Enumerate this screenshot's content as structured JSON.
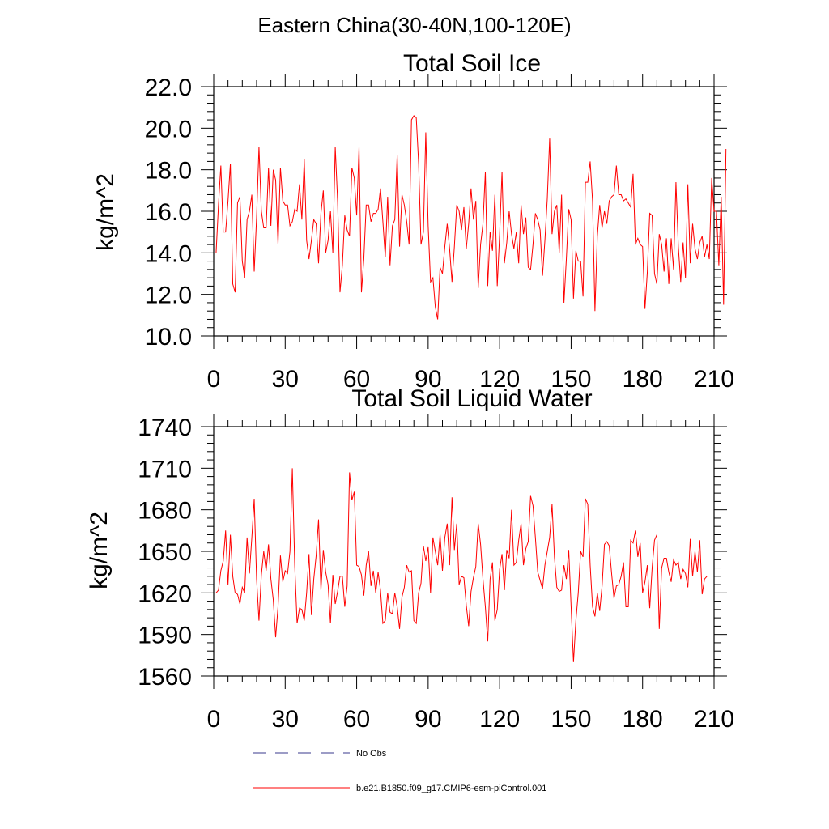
{
  "main_title": "Eastern China(30-40N,100-120E)",
  "legend": {
    "items": [
      {
        "label": "No Obs",
        "color": "#3a3a8c",
        "style": "dashed"
      },
      {
        "label": "b.e21.B1850.f09_g17.CMIP6-esm-piControl.001",
        "color": "#ff0000",
        "style": "solid"
      }
    ]
  },
  "chart_data": [
    {
      "type": "line",
      "title": "Total Soil Ice",
      "xlabel": "",
      "ylabel": "kg/m^2",
      "xlim": [
        0,
        210
      ],
      "ylim": [
        10,
        22
      ],
      "xticks": [
        0,
        30,
        60,
        90,
        120,
        150,
        180,
        210
      ],
      "yticks": [
        10,
        12,
        14,
        16,
        18,
        20,
        22
      ],
      "ytick_labels": [
        "10.0",
        "12.0",
        "14.0",
        "16.0",
        "18.0",
        "20.0",
        "22.0"
      ],
      "series": [
        {
          "name": "b.e21.B1850.f09_g17.CMIP6-esm-piControl.001",
          "color": "#ff0000",
          "values": [
            14.0,
            16.3,
            18.2,
            15.0,
            15.0,
            16.5,
            18.3,
            12.5,
            12.1,
            16.4,
            16.7,
            13.6,
            12.8,
            15.6,
            16.0,
            16.8,
            13.1,
            15.7,
            19.1,
            16.0,
            15.2,
            15.2,
            18.1,
            15.3,
            18.0,
            17.5,
            14.4,
            18.1,
            16.5,
            16.3,
            16.3,
            15.3,
            15.5,
            16.1,
            16.0,
            17.3,
            15.6,
            18.5,
            14.6,
            13.7,
            14.6,
            15.6,
            15.4,
            13.5,
            15.9,
            17.0,
            14.0,
            14.6,
            16.0,
            14.0,
            19.1,
            16.5,
            12.1,
            13.4,
            15.8,
            15.1,
            14.8,
            18.1,
            17.6,
            15.8,
            19.1,
            12.1,
            13.7,
            16.3,
            16.3,
            15.5,
            15.9,
            15.9,
            16.1,
            17.1,
            15.5,
            13.8,
            16.7,
            13.4,
            15.3,
            15.6,
            18.7,
            14.3,
            16.8,
            16.3,
            15.5,
            14.4,
            20.4,
            20.6,
            20.5,
            18.3,
            14.4,
            15.0,
            19.8,
            15.3,
            12.6,
            12.8,
            11.4,
            10.8,
            13.3,
            13.0,
            14.3,
            15.4,
            14.2,
            12.6,
            14.3,
            16.3,
            16.0,
            15.1,
            16.2,
            14.2,
            15.4,
            17.1,
            15.6,
            16.5,
            12.3,
            14.4,
            15.4,
            17.9,
            12.4,
            15.0,
            14.1,
            16.8,
            12.4,
            14.9,
            17.9,
            13.5,
            14.5,
            16.0,
            14.9,
            14.2,
            15.0,
            13.5,
            16.3,
            14.9,
            15.7,
            13.3,
            13.2,
            14.4,
            15.9,
            15.6,
            15.1,
            12.9,
            14.6,
            16.6,
            19.5,
            14.9,
            16.0,
            16.3,
            14.0,
            16.8,
            11.6,
            13.7,
            16.1,
            15.6,
            11.8,
            14.1,
            13.6,
            13.6,
            11.9,
            17.4,
            17.4,
            18.4,
            16.5,
            11.2,
            14.8,
            16.3,
            15.2,
            16.0,
            15.4,
            16.5,
            16.7,
            16.8,
            18.2,
            16.8,
            16.8,
            16.5,
            16.6,
            16.4,
            16.2,
            17.8,
            14.4,
            14.7,
            14.4,
            14.3,
            11.3,
            13.1,
            15.9,
            15.8,
            13.0,
            12.5,
            14.9,
            14.4,
            13.1,
            14.7,
            12.5,
            14.7,
            13.2,
            17.4,
            14.3,
            12.6,
            14.5,
            12.8,
            17.3,
            13.5,
            15.4,
            14.2,
            13.7,
            14.5,
            14.8,
            13.8,
            14.4,
            13.7,
            17.6,
            16.0,
            16.0,
            13.4,
            16.7,
            11.5,
            19.0
          ]
        }
      ]
    },
    {
      "type": "line",
      "title": "Total Soil Liquid Water",
      "xlabel": "",
      "ylabel": "kg/m^2",
      "xlim": [
        0,
        210
      ],
      "ylim": [
        1560,
        1740
      ],
      "xticks": [
        0,
        30,
        60,
        90,
        120,
        150,
        180,
        210
      ],
      "yticks": [
        1560,
        1590,
        1620,
        1650,
        1680,
        1710,
        1740
      ],
      "ytick_labels": [
        "1560",
        "1590",
        "1620",
        "1650",
        "1680",
        "1710",
        "1740"
      ],
      "series": [
        {
          "name": "b.e21.B1850.f09_g17.CMIP6-esm-piControl.001",
          "color": "#ff0000",
          "values": [
            1620,
            1622,
            1636,
            1643,
            1665,
            1626,
            1662,
            1632,
            1620,
            1619,
            1612,
            1624,
            1620,
            1660,
            1634,
            1660,
            1688,
            1630,
            1600,
            1633,
            1650,
            1636,
            1655,
            1630,
            1615,
            1588,
            1610,
            1647,
            1628,
            1636,
            1634,
            1650,
            1710,
            1640,
            1598,
            1609,
            1608,
            1600,
            1620,
            1648,
            1604,
            1630,
            1647,
            1673,
            1622,
            1651,
            1635,
            1626,
            1598,
            1633,
            1612,
            1621,
            1632,
            1632,
            1610,
            1625,
            1707,
            1687,
            1693,
            1640,
            1639,
            1633,
            1618,
            1640,
            1650,
            1625,
            1636,
            1620,
            1635,
            1622,
            1598,
            1600,
            1620,
            1606,
            1605,
            1620,
            1610,
            1594,
            1617,
            1624,
            1640,
            1635,
            1636,
            1600,
            1598,
            1620,
            1627,
            1654,
            1643,
            1653,
            1620,
            1660,
            1650,
            1640,
            1662,
            1636,
            1660,
            1670,
            1640,
            1689,
            1651,
            1670,
            1626,
            1632,
            1631,
            1611,
            1596,
            1621,
            1631,
            1639,
            1670,
            1655,
            1630,
            1610,
            1585,
            1630,
            1642,
            1600,
            1608,
            1637,
            1648,
            1622,
            1651,
            1645,
            1680,
            1640,
            1642,
            1658,
            1670,
            1640,
            1652,
            1657,
            1690,
            1683,
            1660,
            1635,
            1629,
            1623,
            1640,
            1650,
            1660,
            1684,
            1646,
            1624,
            1621,
            1622,
            1640,
            1630,
            1651,
            1610,
            1570,
            1600,
            1620,
            1650,
            1646,
            1688,
            1684,
            1640,
            1610,
            1603,
            1620,
            1607,
            1625,
            1655,
            1657,
            1654,
            1634,
            1616,
            1625,
            1626,
            1632,
            1642,
            1610,
            1610,
            1658,
            1656,
            1665,
            1646,
            1656,
            1620,
            1628,
            1640,
            1609,
            1638,
            1658,
            1662,
            1594,
            1638,
            1645,
            1645,
            1635,
            1628,
            1644,
            1640,
            1642,
            1630,
            1637,
            1634,
            1624,
            1659,
            1632,
            1650,
            1635,
            1658,
            1619,
            1630,
            1632
          ]
        }
      ]
    }
  ]
}
